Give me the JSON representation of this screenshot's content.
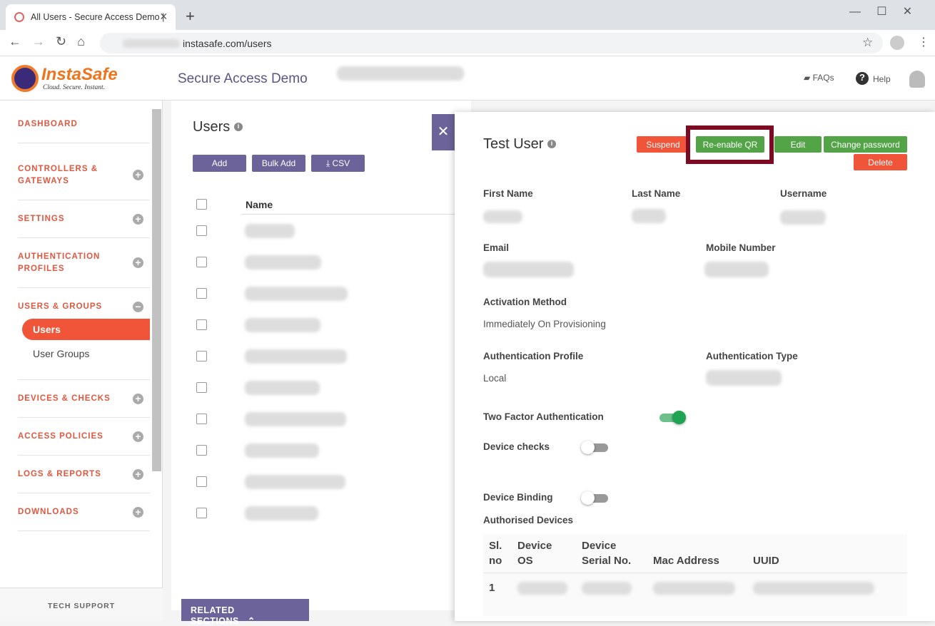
{
  "browser": {
    "tab_title": "All Users - Secure Access Demo |",
    "url": "instasafe.com/users"
  },
  "header": {
    "logo_name": "InstaSafe",
    "logo_tagline": "Cloud. Secure. Instant.",
    "app_title": "Secure Access Demo",
    "faqs": "FAQs",
    "help": "Help"
  },
  "sidebar": {
    "items": [
      {
        "label": "DASHBOARD"
      },
      {
        "label": "CONTROLLERS & GATEWAYS"
      },
      {
        "label": "SETTINGS"
      },
      {
        "label": "AUTHENTICATION PROFILES"
      },
      {
        "label": "USERS & GROUPS",
        "children": [
          "Users",
          "User Groups"
        ]
      },
      {
        "label": "DEVICES & CHECKS"
      },
      {
        "label": "ACCESS POLICIES"
      },
      {
        "label": "LOGS & REPORTS"
      },
      {
        "label": "DOWNLOADS"
      }
    ],
    "tech_support": "TECH SUPPORT"
  },
  "main": {
    "title": "Users",
    "buttons": [
      "Add",
      "Bulk Add",
      "CSV"
    ],
    "column": "Name",
    "related": "RELATED SECTIONS"
  },
  "panel": {
    "title": "Test User",
    "buttons": [
      "Suspend",
      "Re-enable QR",
      "Edit",
      "Change password",
      "Delete"
    ],
    "fields": {
      "first_name": "First Name",
      "last_name": "Last Name",
      "username": "Username",
      "email": "Email",
      "mobile": "Mobile Number",
      "activation_method": "Activation Method",
      "activation_value": "Immediately On Provisioning",
      "auth_profile": "Authentication Profile",
      "auth_profile_value": "Local",
      "auth_type": "Authentication Type"
    },
    "toggles": [
      {
        "label": "Two Factor Authentication",
        "on": true
      },
      {
        "label": "Device checks",
        "on": false
      },
      {
        "label": "Device Binding",
        "on": false
      }
    ],
    "devices_title": "Authorised Devices",
    "devices_headers": [
      "Sl. no",
      "Device OS",
      "Device Serial No.",
      "Mac Address",
      "UUID"
    ],
    "devices_rows": [
      [
        "1"
      ]
    ]
  }
}
